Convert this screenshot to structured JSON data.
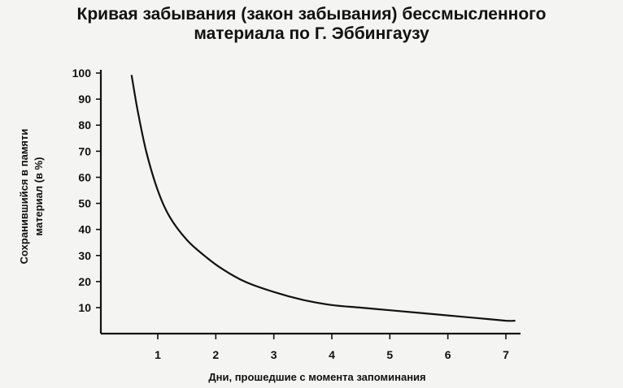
{
  "chart_data": {
    "type": "line",
    "title_lines": [
      "Кривая забывания (закон забывания) бессмысленного",
      "материала по Г. Эббингаузу"
    ],
    "xlabel": "Дни, прошедшие с момента запоминания",
    "ylabel_lines": [
      "Сохранившийся в памяти",
      "материал (в %)"
    ],
    "x_ticks": [
      "1",
      "2",
      "3",
      "4",
      "5",
      "6",
      "7"
    ],
    "y_ticks": [
      "10",
      "20",
      "30",
      "40",
      "50",
      "60",
      "70",
      "80",
      "90",
      "100"
    ],
    "xlim": [
      0,
      7.3
    ],
    "ylim": [
      0,
      100
    ],
    "grid": false,
    "series": [
      {
        "color": "#111111",
        "x": [
          0.55,
          0.65,
          0.8,
          1.0,
          1.2,
          1.5,
          1.8,
          2.1,
          2.5,
          3.0,
          3.5,
          4.0,
          4.5,
          5.0,
          5.5,
          6.0,
          6.5,
          7.0,
          7.15
        ],
        "y": [
          99,
          86,
          70,
          55,
          45,
          36,
          30,
          25,
          20,
          16,
          13,
          11,
          10,
          9,
          8,
          7,
          6,
          5,
          5
        ]
      }
    ]
  }
}
